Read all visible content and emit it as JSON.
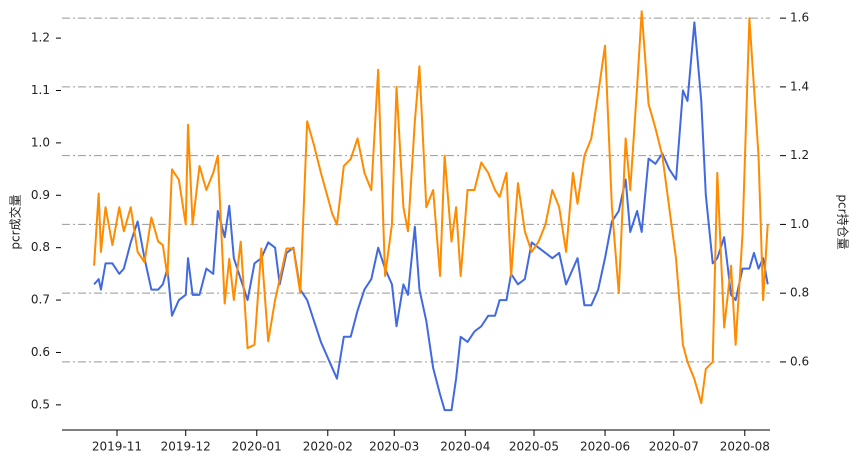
{
  "chart_data": {
    "type": "line",
    "ylabel": "pcr成交量",
    "y2label": "pcr持仓量",
    "grid": "y2",
    "xlim": [
      -24,
      285
    ],
    "xticks": [
      {
        "value": 0,
        "label": "2019-11"
      },
      {
        "value": 30,
        "label": "2019-12"
      },
      {
        "value": 61,
        "label": "2020-01"
      },
      {
        "value": 92,
        "label": "2020-02"
      },
      {
        "value": 121,
        "label": "2020-03"
      },
      {
        "value": 152,
        "label": "2020-04"
      },
      {
        "value": 182,
        "label": "2020-05"
      },
      {
        "value": 213,
        "label": "2020-06"
      },
      {
        "value": 243,
        "label": "2020-07"
      },
      {
        "value": 274,
        "label": "2020-08"
      }
    ],
    "ylim": [
      0.452,
      1.246
    ],
    "yticks": [
      0.5,
      0.6,
      0.7,
      0.8,
      0.9,
      {
        "value": 1,
        "label": "1.0"
      },
      1.1,
      1.2
    ],
    "y2lim": [
      0.402,
      1.612
    ],
    "y2ticks": [
      0.6,
      0.8,
      {
        "value": 1,
        "label": "1.0"
      },
      1.2,
      1.4,
      1.6
    ],
    "x": [
      -10,
      -8,
      -7,
      -5,
      -2,
      1,
      3,
      6,
      9,
      12,
      15,
      18,
      20,
      22,
      24,
      27,
      30,
      31,
      33,
      36,
      39,
      42,
      44,
      47,
      49,
      51,
      54,
      57,
      60,
      63,
      66,
      69,
      71,
      74,
      77,
      80,
      83,
      86,
      89,
      94,
      96,
      99,
      102,
      105,
      108,
      111,
      114,
      117,
      120,
      122,
      125,
      127,
      130,
      132,
      135,
      138,
      141,
      143,
      146,
      148,
      150,
      153,
      156,
      159,
      162,
      165,
      167,
      170,
      172,
      175,
      178,
      181,
      184,
      187,
      190,
      193,
      196,
      199,
      201,
      204,
      207,
      210,
      213,
      216,
      219,
      222,
      224,
      227,
      229,
      232,
      235,
      238,
      241,
      244,
      247,
      249,
      252,
      255,
      257,
      260,
      262,
      265,
      268,
      270,
      273,
      276,
      278,
      280,
      282,
      284
    ],
    "series": [
      {
        "color": "#4169e1",
        "axis": "y",
        "values": [
          0.73,
          0.74,
          0.72,
          0.77,
          0.77,
          0.75,
          0.76,
          0.81,
          0.85,
          0.78,
          0.72,
          0.72,
          0.73,
          0.76,
          0.67,
          0.7,
          0.71,
          0.78,
          0.71,
          0.71,
          0.76,
          0.75,
          0.87,
          0.82,
          0.88,
          0.78,
          0.74,
          0.7,
          0.77,
          0.78,
          0.81,
          0.8,
          0.73,
          0.79,
          0.8,
          0.72,
          0.7,
          0.66,
          0.62,
          0.57,
          0.55,
          0.63,
          0.63,
          0.68,
          0.72,
          0.74,
          0.8,
          0.76,
          0.73,
          0.65,
          0.73,
          0.71,
          0.84,
          0.72,
          0.66,
          0.57,
          0.52,
          0.49,
          0.49,
          0.55,
          0.63,
          0.62,
          0.64,
          0.65,
          0.67,
          0.67,
          0.7,
          0.7,
          0.75,
          0.73,
          0.74,
          0.81,
          0.8,
          0.79,
          0.78,
          0.79,
          0.73,
          0.76,
          0.78,
          0.69,
          0.69,
          0.72,
          0.78,
          0.85,
          0.87,
          0.93,
          0.83,
          0.87,
          0.83,
          0.97,
          0.96,
          0.98,
          0.95,
          0.93,
          1.1,
          1.08,
          1.23,
          1.08,
          0.9,
          0.77,
          0.78,
          0.82,
          0.71,
          0.7,
          0.76,
          0.76,
          0.79,
          0.76,
          0.78,
          0.73
        ]
      },
      {
        "color": "#ff8c00",
        "axis": "y2",
        "values": [
          0.88,
          1.09,
          0.92,
          1.05,
          0.94,
          1.05,
          0.98,
          1.05,
          0.92,
          0.89,
          1.02,
          0.95,
          0.94,
          0.85,
          1.16,
          1.13,
          1.0,
          1.29,
          1.0,
          1.17,
          1.1,
          1.15,
          1.2,
          0.77,
          0.9,
          0.78,
          0.95,
          0.64,
          0.65,
          0.93,
          0.66,
          0.78,
          0.84,
          0.93,
          0.93,
          0.8,
          1.3,
          1.23,
          1.15,
          1.03,
          1.0,
          1.17,
          1.19,
          1.25,
          1.15,
          1.1,
          1.45,
          0.85,
          1.0,
          1.4,
          1.05,
          0.98,
          1.3,
          1.46,
          1.05,
          1.1,
          0.85,
          1.2,
          0.95,
          1.05,
          0.85,
          1.1,
          1.1,
          1.18,
          1.15,
          1.1,
          1.08,
          1.15,
          0.85,
          1.12,
          0.98,
          0.92,
          0.95,
          1.0,
          1.1,
          1.05,
          0.92,
          1.15,
          1.06,
          1.2,
          1.25,
          1.38,
          1.52,
          1.05,
          0.8,
          1.25,
          1.1,
          1.4,
          1.62,
          1.35,
          1.28,
          1.2,
          1.05,
          0.9,
          0.65,
          0.6,
          0.55,
          0.48,
          0.58,
          0.6,
          1.15,
          0.7,
          0.88,
          0.65,
          0.97,
          1.6,
          1.4,
          1.2,
          0.78,
          1.0
        ]
      }
    ]
  }
}
